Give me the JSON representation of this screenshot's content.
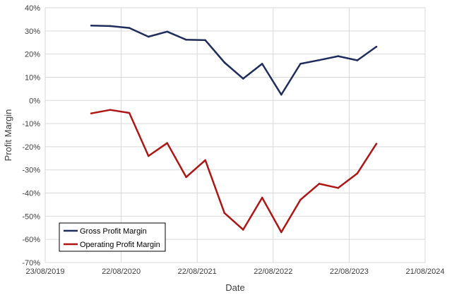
{
  "chart_data": {
    "type": "line",
    "title": "",
    "xlabel": "Date",
    "ylabel": "Profit Margin",
    "x_ticks": [
      "23/08/2019",
      "22/08/2020",
      "22/08/2021",
      "22/08/2022",
      "22/08/2023",
      "21/08/2024"
    ],
    "xlim": [
      "23/08/2019",
      "21/08/2024"
    ],
    "ylim": [
      -70,
      40
    ],
    "y_ticks": [
      40,
      30,
      20,
      10,
      0,
      -10,
      -20,
      -30,
      -40,
      -50,
      -60,
      -70
    ],
    "y_tick_labels": [
      "40%",
      "30%",
      "20%",
      "10%",
      "0%",
      "-10%",
      "-20%",
      "-30%",
      "-40%",
      "-50%",
      "-60%",
      "-70%"
    ],
    "grid": true,
    "legend_position": "bottom-left",
    "x": [
      "31/03/2020",
      "30/06/2020",
      "30/09/2020",
      "31/12/2020",
      "31/03/2021",
      "30/06/2021",
      "30/09/2021",
      "31/12/2021",
      "31/03/2022",
      "30/06/2022",
      "30/09/2022",
      "31/12/2022",
      "31/03/2023",
      "30/06/2023",
      "30/09/2023",
      "31/12/2023"
    ],
    "series": [
      {
        "name": "Gross Profit Margin",
        "color": "#1f2d5c",
        "values": [
          32.3,
          32.1,
          31.3,
          27.5,
          29.7,
          26.2,
          26.0,
          16.4,
          9.4,
          15.8,
          2.5,
          15.8,
          17.4,
          19.1,
          17.3,
          23.2
        ]
      },
      {
        "name": "Operating Profit Margin",
        "color": "#b01515",
        "values": [
          -5.6,
          -4.1,
          -5.4,
          -24.0,
          -18.4,
          -33.1,
          -25.8,
          -48.6,
          -55.8,
          -42.0,
          -56.9,
          -42.9,
          -36.0,
          -37.8,
          -31.5,
          -18.7
        ]
      }
    ]
  }
}
